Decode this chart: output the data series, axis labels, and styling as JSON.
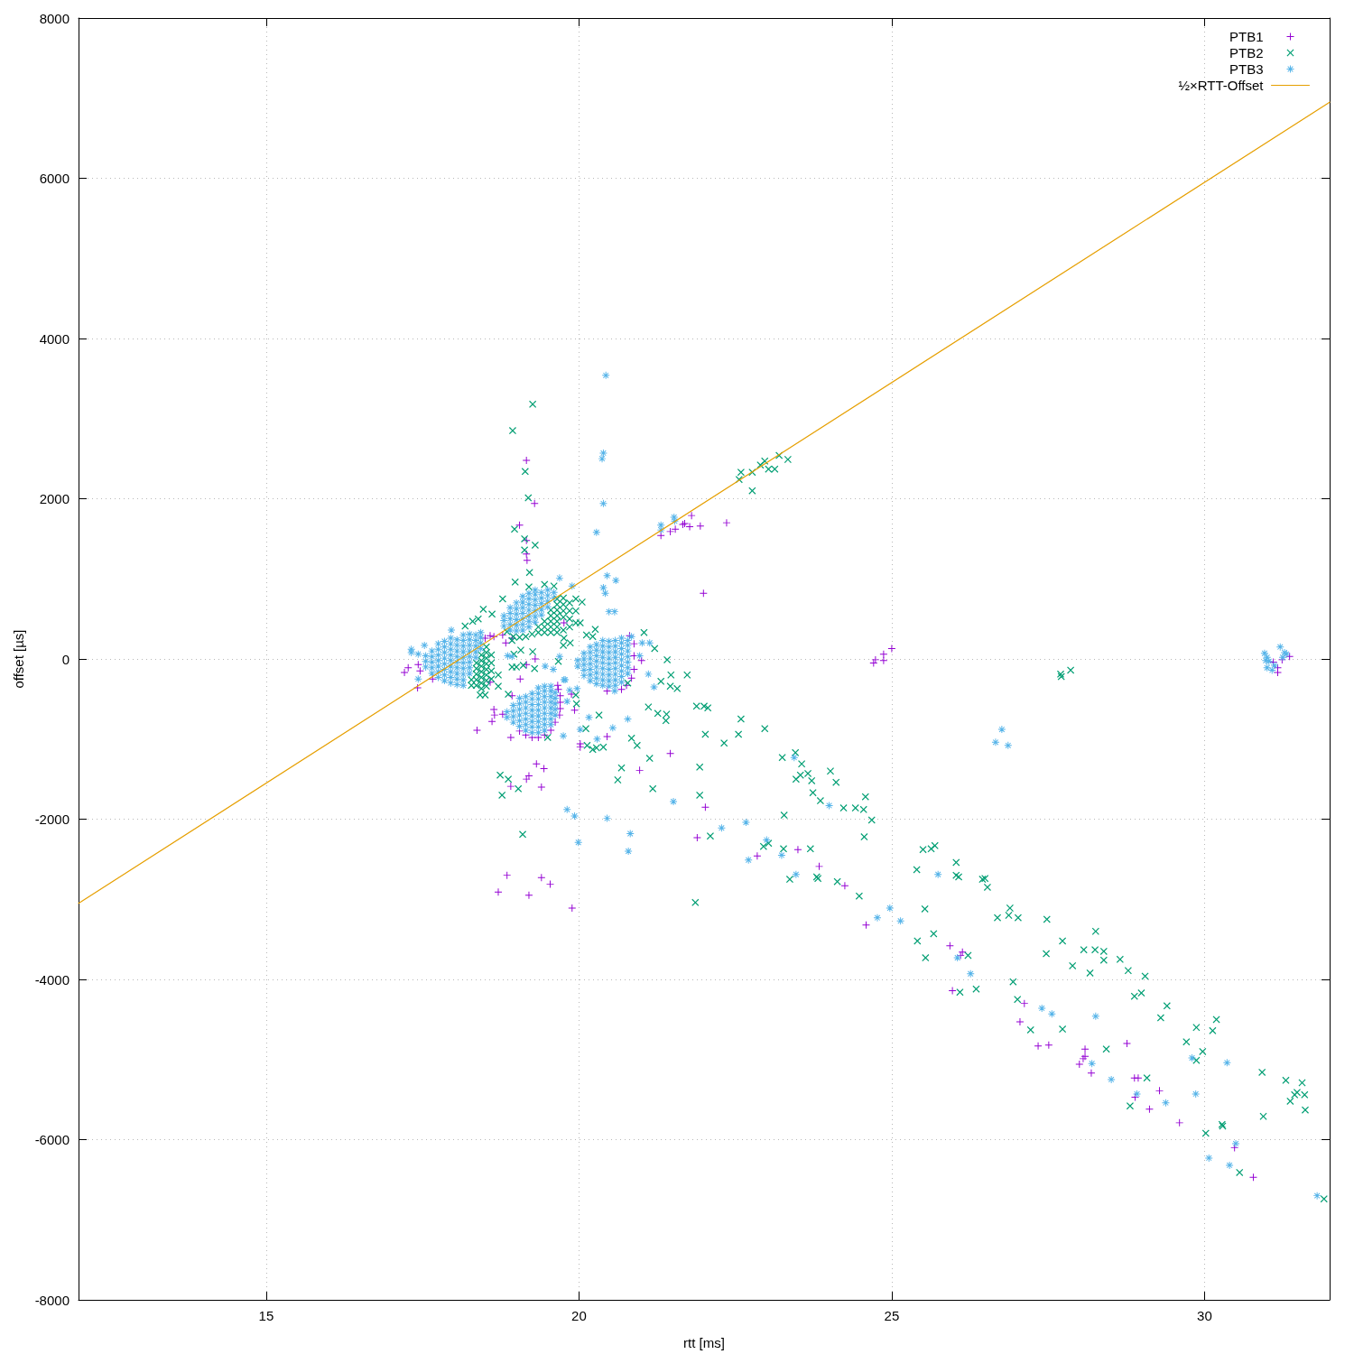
{
  "chart_data": {
    "type": "scatter",
    "xlabel": "rtt [ms]",
    "ylabel": "offset [µs]",
    "xlim": [
      12,
      32
    ],
    "xticks": [
      15,
      20,
      25,
      30
    ],
    "ylim": [
      -8000,
      8000
    ],
    "yticks": [
      -8000,
      -6000,
      -4000,
      -2000,
      0,
      2000,
      4000,
      6000,
      8000
    ],
    "grid": true,
    "legend": "top right",
    "series": [
      {
        "name": "PTB1",
        "color": "#9400d3",
        "marker": "cross",
        "x": [
          19.05,
          19.15,
          19.25,
          19.35,
          19.45,
          19.55,
          19.62,
          19.69,
          19.7,
          19.7,
          19.7,
          19.67,
          20.45,
          20.68,
          20.76,
          20.84,
          20.88,
          20.88,
          31.1,
          31.17,
          31.17,
          31.24,
          31.36,
          24.71,
          24.74,
          24.87,
          24.87,
          25.0,
          19.16,
          19.29,
          19.05,
          19.16,
          19.16,
          19.17,
          18.58,
          18.64,
          18.78,
          18.83,
          18.93,
          18.5,
          20.81,
          19.76,
          21.31,
          21.46,
          21.54,
          21.66,
          21.69,
          21.77,
          21.8,
          21.94,
          22.36,
          21.99,
          17.21,
          17.27,
          17.43,
          17.46,
          17.66,
          17.42,
          18.37,
          18.64,
          18.65,
          18.61,
          18.78,
          18.91,
          19.06,
          19.3,
          19.16,
          18.93,
          18.58,
          19.66,
          19.88,
          19.93,
          20.02,
          20.02,
          20.45,
          21.46,
          20.97,
          19.32,
          19.44,
          19.2,
          19.16,
          18.91,
          19.4,
          18.85,
          18.71,
          19.4,
          19.54,
          19.2,
          19.89,
          20.88,
          21.0,
          22.02,
          21.89,
          22.85,
          23.5,
          23.84,
          24.25,
          24.59,
          25.93,
          26.13,
          26.1,
          25.97,
          27.12,
          27.05,
          27.34,
          27.51,
          28.09,
          28.09,
          28.06,
          28.0,
          28.19,
          28.76,
          28.88,
          28.94,
          28.89,
          29.28,
          29.12,
          29.6,
          30.48,
          30.78
        ],
        "values": [
          -900,
          -950,
          -980,
          -980,
          -950,
          -890,
          -790,
          -700,
          -620,
          -540,
          -460,
          -380,
          -400,
          -380,
          -330,
          -240,
          -130,
          40,
          -40,
          -110,
          -170,
          -10,
          30,
          -50,
          -10,
          -20,
          60,
          130,
          2480,
          1940,
          1670,
          1480,
          1310,
          1230,
          290,
          280,
          300,
          200,
          260,
          260,
          290,
          450,
          1540,
          1590,
          1620,
          1680,
          1690,
          1650,
          1790,
          1660,
          1700,
          820,
          -170,
          -110,
          -70,
          -150,
          -250,
          -360,
          -890,
          -630,
          -700,
          -780,
          -690,
          -980,
          -250,
          0,
          -70,
          -460,
          -290,
          -330,
          -440,
          -640,
          -1060,
          -1100,
          -970,
          -1180,
          -1390,
          -1310,
          -1370,
          -1460,
          -1500,
          -1590,
          -1600,
          -2700,
          -2910,
          -2730,
          -2810,
          -2950,
          -3110,
          190,
          -20,
          -1850,
          -2230,
          -2460,
          -2380,
          -2590,
          -2830,
          -3320,
          -3580,
          -3660,
          -3700,
          -4140,
          -4300,
          -4530,
          -4830,
          -4820,
          -4870,
          -4960,
          -4990,
          -5060,
          -5170,
          -4800,
          -5230,
          -5230,
          -5470,
          -5390,
          -5620,
          -5790,
          -6100,
          -6470
        ]
      },
      {
        "name": "PTB2",
        "color": "#009e73",
        "marker": "cross",
        "x": [
          18.28,
          18.28,
          18.36,
          18.36,
          18.36,
          18.36,
          18.36,
          18.44,
          18.44,
          18.44,
          18.44,
          18.44,
          18.44,
          18.44,
          18.52,
          18.52,
          18.52,
          18.52,
          18.52,
          18.52,
          18.52,
          18.52,
          18.6,
          18.6,
          18.6,
          18.6,
          18.85,
          18.95,
          19.05,
          19.15,
          19.25,
          19.35,
          19.35,
          19.45,
          19.45,
          19.45,
          19.55,
          19.55,
          19.55,
          19.55,
          19.55,
          19.65,
          19.65,
          19.65,
          19.65,
          19.65,
          19.65,
          19.65,
          19.75,
          19.75,
          19.75,
          19.75,
          19.75,
          19.85,
          19.85,
          19.85,
          19.85,
          19.95,
          19.95,
          19.95,
          19.2,
          19.45,
          19.6,
          19.26,
          18.94,
          19.14,
          19.19,
          18.97,
          19.13,
          19.3,
          19.13,
          19.21,
          18.98,
          18.78,
          18.47,
          20.05,
          20.26,
          20.12,
          20.22,
          21.04,
          21.21,
          19.26,
          19.07,
          18.93,
          18.18,
          18.3,
          18.39,
          18.61,
          20.02,
          19.76,
          19.86,
          18.74,
          18.87,
          19.03,
          18.77,
          19.1,
          19.96,
          19.95,
          20.11,
          20.13,
          20.22,
          20.28,
          20.39,
          20.32,
          20.84,
          20.93,
          21.13,
          20.68,
          20.62,
          21.18,
          21.11,
          21.26,
          21.39,
          21.4,
          21.31,
          21.46,
          21.57,
          21.41,
          21.47,
          20.78,
          19.67,
          19.29,
          18.87,
          18.93,
          19.0,
          19.11,
          18.42,
          18.5,
          18.71,
          18.71,
          18.96,
          19.5,
          19.75,
          22.59,
          22.56,
          22.77,
          22.9,
          22.97,
          23.03,
          23.13,
          23.2,
          23.34,
          22.77,
          21.73,
          21.88,
          22.0,
          22.06,
          22.59,
          22.97,
          22.02,
          22.32,
          22.55,
          21.93,
          21.93,
          23.25,
          23.46,
          23.56,
          23.47,
          23.54,
          23.66,
          23.72,
          24.02,
          24.11,
          23.74,
          23.86,
          24.23,
          24.42,
          24.55,
          24.58,
          24.68,
          24.56,
          23.28,
          22.1,
          21.86,
          22.95,
          23.03,
          23.27,
          23.7,
          23.37,
          23.8,
          23.82,
          24.13,
          24.48,
          25.4,
          25.5,
          25.63,
          25.69,
          26.03,
          26.03,
          26.07,
          26.45,
          26.49,
          26.53,
          25.53,
          25.67,
          25.41,
          26.69,
          26.87,
          26.89,
          27.02,
          27.48,
          25.54,
          26.22,
          27.73,
          27.47,
          28.07,
          28.25,
          28.39,
          28.26,
          27.89,
          28.17,
          28.39,
          28.65,
          28.78,
          29.05,
          26.94,
          27.01,
          26.09,
          26.35,
          27.22,
          27.73,
          28.43,
          28.88,
          28.99,
          29.4,
          29.3,
          29.71,
          29.87,
          30.19,
          30.13,
          29.97,
          29.87,
          30.92,
          31.3,
          31.56,
          31.44,
          31.48,
          31.6,
          31.37,
          31.61,
          30.94,
          29.08,
          28.81,
          30.02,
          30.28,
          30.29,
          30.56,
          31.91,
          27.7,
          27.71,
          27.86
        ],
        "values": [
          -330,
          -260,
          -330,
          -260,
          -190,
          -120,
          -50,
          -370,
          -300,
          -230,
          -160,
          -90,
          -20,
          50,
          -340,
          -270,
          -200,
          -130,
          -60,
          10,
          80,
          150,
          -250,
          -150,
          -50,
          50,
          340,
          280,
          270,
          280,
          310,
          330,
          400,
          330,
          400,
          470,
          330,
          400,
          470,
          540,
          610,
          330,
          400,
          470,
          540,
          610,
          680,
          750,
          360,
          520,
          600,
          680,
          760,
          400,
          500,
          600,
          700,
          450,
          600,
          750,
          900,
          930,
          910,
          3180,
          2850,
          2340,
          2010,
          1620,
          1500,
          1420,
          1360,
          1080,
          960,
          750,
          620,
          710,
          370,
          300,
          280,
          330,
          130,
          90,
          110,
          230,
          410,
          470,
          500,
          560,
          450,
          260,
          200,
          -1450,
          -1500,
          -1620,
          -1700,
          -2190,
          -560,
          -450,
          -870,
          -1080,
          -1130,
          -1110,
          -1100,
          -700,
          -990,
          -1080,
          -1240,
          -1360,
          -1510,
          -1620,
          -600,
          -680,
          -770,
          -690,
          -280,
          -340,
          -370,
          -10,
          -200,
          -300,
          -30,
          -120,
          -440,
          -100,
          -100,
          -80,
          -450,
          -450,
          -340,
          -200,
          60,
          -980,
          170,
          2330,
          2240,
          2330,
          2420,
          2470,
          2370,
          2370,
          2540,
          2490,
          2100,
          -200,
          -590,
          -590,
          -610,
          -750,
          -870,
          -940,
          -1050,
          -940,
          -1350,
          -1700,
          -1230,
          -1170,
          -1310,
          -1500,
          -1450,
          -1430,
          -1520,
          -1400,
          -1540,
          -1670,
          -1770,
          -1860,
          -1860,
          -1880,
          -1720,
          -2010,
          -2220,
          -1950,
          -2210,
          -3040,
          -2340,
          -2300,
          -2370,
          -2370,
          -2750,
          -2720,
          -2740,
          -2780,
          -2960,
          -2630,
          -2380,
          -2370,
          -2330,
          -2540,
          -2700,
          -2720,
          -2750,
          -2740,
          -2850,
          -3120,
          -3430,
          -3520,
          -3230,
          -3200,
          -3110,
          -3230,
          -3250,
          -3730,
          -3700,
          -3520,
          -3680,
          -3630,
          -3630,
          -3650,
          -3400,
          -3830,
          -3920,
          -3760,
          -3750,
          -3890,
          -3960,
          -4030,
          -4250,
          -4160,
          -4120,
          -4630,
          -4620,
          -4870,
          -4210,
          -4170,
          -4330,
          -4480,
          -4780,
          -4600,
          -4500,
          -4640,
          -4900,
          -5010,
          -5160,
          -5260,
          -5290,
          -5440,
          -5410,
          -5440,
          -5520,
          -5630,
          -5710,
          -5230,
          -5580,
          -5920,
          -5810,
          -5830,
          -6410,
          -6740,
          -190,
          -220,
          -140
        ]
      },
      {
        "name": "PTB3",
        "color": "#56b4e9",
        "marker": "star",
        "x": [
          17.55,
          17.55,
          17.55,
          17.65,
          17.65,
          17.65,
          17.65,
          17.65,
          17.75,
          17.75,
          17.75,
          17.75,
          17.75,
          17.75,
          17.75,
          17.85,
          17.85,
          17.85,
          17.85,
          17.85,
          17.85,
          17.85,
          17.85,
          17.95,
          17.95,
          17.95,
          17.95,
          17.95,
          17.95,
          17.95,
          17.95,
          17.95,
          18.05,
          18.05,
          18.05,
          18.05,
          18.05,
          18.05,
          18.05,
          18.05,
          18.05,
          18.15,
          18.15,
          18.15,
          18.15,
          18.15,
          18.15,
          18.15,
          18.15,
          18.15,
          18.15,
          18.25,
          18.25,
          18.25,
          18.25,
          18.25,
          18.25,
          18.25,
          18.25,
          18.35,
          18.35,
          18.35,
          18.35,
          18.35,
          18.43,
          18.43,
          18.43,
          18.43,
          18.8,
          18.8,
          18.8,
          18.9,
          18.9,
          18.9,
          18.9,
          18.9,
          19.0,
          19.0,
          19.0,
          19.0,
          19.0,
          19.0,
          19.1,
          19.1,
          19.1,
          19.1,
          19.1,
          19.1,
          19.1,
          19.2,
          19.2,
          19.2,
          19.2,
          19.2,
          19.2,
          19.2,
          19.3,
          19.3,
          19.3,
          19.3,
          19.3,
          19.3,
          19.3,
          19.4,
          19.4,
          19.4,
          19.4,
          19.4,
          19.5,
          19.5,
          19.5,
          19.5,
          19.6,
          19.6,
          18.85,
          18.85,
          18.95,
          18.95,
          18.95,
          18.95,
          19.05,
          19.05,
          19.05,
          19.05,
          19.05,
          19.05,
          19.15,
          19.15,
          19.15,
          19.15,
          19.15,
          19.15,
          19.15,
          19.25,
          19.25,
          19.25,
          19.25,
          19.25,
          19.25,
          19.25,
          19.25,
          19.35,
          19.35,
          19.35,
          19.35,
          19.35,
          19.35,
          19.35,
          19.35,
          19.35,
          19.45,
          19.45,
          19.45,
          19.45,
          19.45,
          19.45,
          19.45,
          19.45,
          19.45,
          19.55,
          19.55,
          19.55,
          19.55,
          19.55,
          19.55,
          19.55,
          19.55,
          19.62,
          19.62,
          19.62,
          19.62,
          19.62,
          19.98,
          19.98,
          20.08,
          20.08,
          20.08,
          20.08,
          20.08,
          20.18,
          20.18,
          20.18,
          20.18,
          20.18,
          20.18,
          20.18,
          20.28,
          20.28,
          20.28,
          20.28,
          20.28,
          20.28,
          20.28,
          20.28,
          20.38,
          20.38,
          20.38,
          20.38,
          20.38,
          20.38,
          20.38,
          20.38,
          20.38,
          20.48,
          20.48,
          20.48,
          20.48,
          20.48,
          20.48,
          20.48,
          20.48,
          20.48,
          20.58,
          20.58,
          20.58,
          20.58,
          20.58,
          20.58,
          20.58,
          20.58,
          20.58,
          20.68,
          20.68,
          20.68,
          20.68,
          20.68,
          20.68,
          20.68,
          20.68,
          20.68,
          20.78,
          20.78,
          20.78,
          20.78,
          20.78,
          20.78,
          20.78,
          20.43,
          20.39,
          20.37,
          20.39,
          20.28,
          19.69,
          19.89,
          20.45,
          20.59,
          20.39,
          20.42,
          20.48,
          20.57,
          17.96,
          17.53,
          17.32,
          17.43,
          20.84,
          21.01,
          21.13,
          19.69,
          17.32,
          17.43,
          18.86,
          18.93,
          19.46,
          19.59,
          19.76,
          19.78,
          19.85,
          19.97,
          19.81,
          19.75,
          20.02,
          20.16,
          20.54,
          20.78,
          20.29,
          20.57,
          20.97,
          21.11,
          21.2,
          21.51,
          19.81,
          19.93,
          20.45,
          19.99,
          20.82,
          20.79,
          21.31,
          21.31,
          21.52,
          21.53,
          22.28,
          22.67,
          22.71,
          23.0,
          23.24,
          23.47,
          23.44,
          24.0,
          24.97,
          24.77,
          25.14,
          25.74,
          26.66,
          26.76,
          26.86,
          26.05,
          26.26,
          27.4,
          27.56,
          28.26,
          28.2,
          28.51,
          28.92,
          29.38,
          29.8,
          29.86,
          30.36,
          30.5,
          30.07,
          30.4,
          31.8,
          30.96,
          31.0,
          31.03,
          31.0,
          31.08,
          31.21,
          31.28,
          31.31,
          31.25,
          31.12,
          30.98
        ],
        "values": [
          -100,
          -30,
          40,
          -180,
          -110,
          -40,
          30,
          100,
          -230,
          -160,
          -90,
          -20,
          50,
          120,
          190,
          -270,
          -200,
          -130,
          -60,
          10,
          80,
          150,
          220,
          -300,
          -230,
          -160,
          -90,
          -20,
          50,
          120,
          190,
          260,
          -320,
          -250,
          -180,
          -110,
          -40,
          30,
          100,
          170,
          240,
          -330,
          -260,
          -190,
          -120,
          -50,
          20,
          90,
          160,
          230,
          300,
          -180,
          -110,
          -40,
          30,
          100,
          170,
          240,
          310,
          20,
          90,
          160,
          230,
          300,
          130,
          200,
          270,
          330,
          410,
          480,
          540,
          360,
          430,
          500,
          570,
          640,
          350,
          420,
          490,
          560,
          630,
          700,
          360,
          430,
          500,
          570,
          640,
          710,
          780,
          400,
          470,
          540,
          610,
          680,
          750,
          820,
          460,
          530,
          600,
          670,
          740,
          810,
          860,
          550,
          620,
          690,
          760,
          830,
          650,
          720,
          790,
          860,
          760,
          830,
          -730,
          -660,
          -790,
          -720,
          -650,
          -580,
          -840,
          -770,
          -700,
          -630,
          -560,
          -490,
          -890,
          -820,
          -750,
          -680,
          -610,
          -540,
          -470,
          -920,
          -850,
          -780,
          -710,
          -640,
          -570,
          -500,
          -430,
          -920,
          -850,
          -780,
          -710,
          -640,
          -570,
          -500,
          -430,
          -360,
          -890,
          -820,
          -750,
          -680,
          -610,
          -540,
          -470,
          -400,
          -340,
          -820,
          -750,
          -680,
          -610,
          -540,
          -470,
          -400,
          -340,
          -700,
          -630,
          -560,
          -490,
          -420,
          -90,
          -20,
          -210,
          -140,
          -70,
          0,
          70,
          -270,
          -200,
          -130,
          -60,
          10,
          80,
          150,
          -310,
          -240,
          -170,
          -100,
          -30,
          40,
          110,
          180,
          -330,
          -260,
          -190,
          -120,
          -50,
          20,
          90,
          160,
          230,
          -340,
          -270,
          -200,
          -130,
          -60,
          10,
          80,
          150,
          220,
          -330,
          -260,
          -190,
          -120,
          -50,
          20,
          90,
          160,
          230,
          -290,
          -220,
          -150,
          -80,
          -10,
          60,
          130,
          200,
          260,
          -180,
          -110,
          -40,
          30,
          100,
          170,
          230,
          3540,
          2570,
          2500,
          1940,
          1580,
          1010,
          910,
          1040,
          980,
          890,
          820,
          590,
          590,
          360,
          170,
          120,
          60,
          280,
          200,
          200,
          30,
          80,
          -250,
          40,
          30,
          -90,
          -130,
          -260,
          -260,
          -390,
          -370,
          -530,
          -960,
          -880,
          -730,
          -860,
          -750,
          -1000,
          -400,
          40,
          -190,
          -350,
          -1780,
          -1880,
          -1960,
          -1990,
          -2290,
          -2180,
          -2400,
          1670,
          1610,
          1770,
          1720,
          -2110,
          -2040,
          -2510,
          -2260,
          -2450,
          -2690,
          -1230,
          -1830,
          -3110,
          -3230,
          -3270,
          -2690,
          -1040,
          -880,
          -1080,
          -3730,
          -3930,
          -4360,
          -4430,
          -4460,
          -5050,
          -5250,
          -5430,
          -5540,
          -4980,
          -5430,
          -5040,
          -6050,
          -6230,
          -6320,
          -6700,
          70,
          20,
          -30,
          -110,
          -140,
          150,
          80,
          60,
          20,
          -80,
          -20
        ]
      },
      {
        "type": "line",
        "name": "½×RTT-Offset",
        "color": "#e69f00",
        "x": [
          12,
          32
        ],
        "values": [
          -3050,
          6950
        ]
      }
    ]
  }
}
